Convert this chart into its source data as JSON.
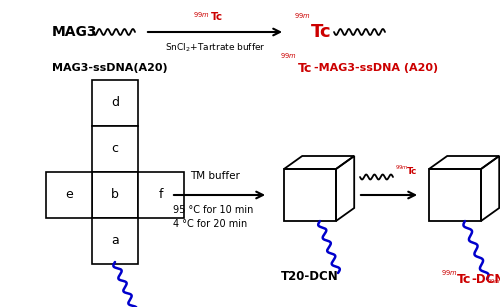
{
  "background_color": "#ffffff",
  "wavy_color_black": "#000000",
  "wavy_color_red": "#cc0000",
  "wavy_color_blue": "#0000cc",
  "box_color": "#000000",
  "text_color_black": "#000000",
  "text_color_red": "#cc0000",
  "arrow1_text_above": "99mTc",
  "arrow1_text_below": "SnCl2+Tartrate buffer",
  "arrow2_text_top": "TM buffer",
  "arrow2_text_mid": "95 °C for 10 min",
  "arrow2_text_bot": "4 °C for 20 min",
  "t20dcn_label": "T20-DCN",
  "tc_dcn_label_pre": "99mTc",
  "tc_dcn_label_suf": "-DCN"
}
